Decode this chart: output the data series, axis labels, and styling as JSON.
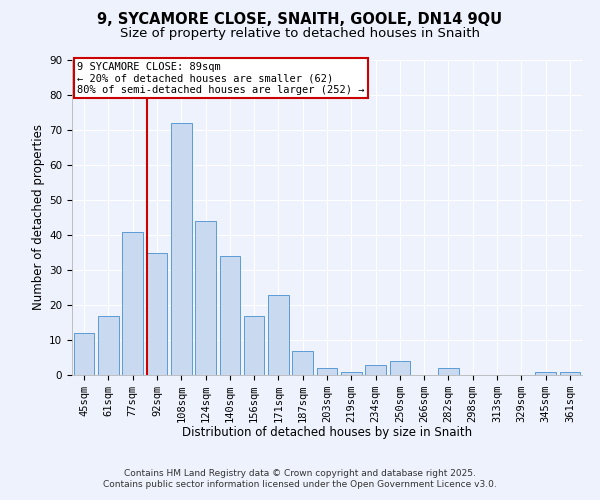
{
  "title": "9, SYCAMORE CLOSE, SNAITH, GOOLE, DN14 9QU",
  "subtitle": "Size of property relative to detached houses in Snaith",
  "xlabel": "Distribution of detached houses by size in Snaith",
  "ylabel": "Number of detached properties",
  "bar_labels": [
    "45sqm",
    "61sqm",
    "77sqm",
    "92sqm",
    "108sqm",
    "124sqm",
    "140sqm",
    "156sqm",
    "171sqm",
    "187sqm",
    "203sqm",
    "219sqm",
    "234sqm",
    "250sqm",
    "266sqm",
    "282sqm",
    "298sqm",
    "313sqm",
    "329sqm",
    "345sqm",
    "361sqm"
  ],
  "bar_values": [
    12,
    17,
    41,
    35,
    72,
    44,
    34,
    17,
    23,
    7,
    2,
    1,
    3,
    4,
    0,
    2,
    0,
    0,
    0,
    1,
    1
  ],
  "bar_color": "#c9d9f0",
  "bar_edge_color": "#5b9bd5",
  "vline_color": "#cc0000",
  "vline_pos": 2.575,
  "ylim": [
    0,
    90
  ],
  "yticks": [
    0,
    10,
    20,
    30,
    40,
    50,
    60,
    70,
    80,
    90
  ],
  "annotation_title": "9 SYCAMORE CLOSE: 89sqm",
  "annotation_line1": "← 20% of detached houses are smaller (62)",
  "annotation_line2": "80% of semi-detached houses are larger (252) →",
  "annotation_box_color": "#ffffff",
  "annotation_box_edge": "#cc0000",
  "footnote1": "Contains HM Land Registry data © Crown copyright and database right 2025.",
  "footnote2": "Contains public sector information licensed under the Open Government Licence v3.0.",
  "bg_color": "#eef2fc",
  "grid_color": "#ffffff",
  "title_fontsize": 10.5,
  "subtitle_fontsize": 9.5,
  "axis_label_fontsize": 8.5,
  "tick_fontsize": 7.5,
  "footnote_fontsize": 6.5,
  "annotation_fontsize": 7.5
}
